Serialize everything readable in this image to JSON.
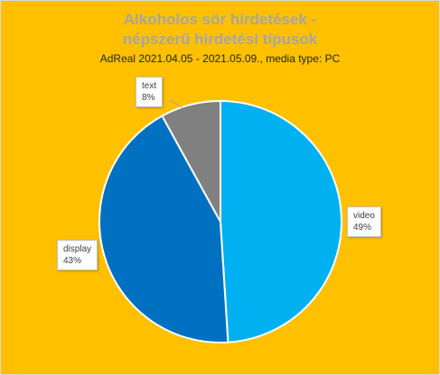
{
  "chart_data": {
    "type": "pie",
    "title_line1": "Alkoholos sör hirdetések -",
    "title_line2": "népszerű hirdetési típusok",
    "subtitle": "AdReal 2021.04.05  - 2021.05.09.,  media type: PC",
    "slices": [
      {
        "name": "video",
        "value": 49,
        "label": "49%",
        "color": "#00B0F0"
      },
      {
        "name": "display",
        "value": 43,
        "label": "43%",
        "color": "#0070C0"
      },
      {
        "name": "text",
        "value": 8,
        "label": "8%",
        "color": "#808080"
      }
    ]
  }
}
